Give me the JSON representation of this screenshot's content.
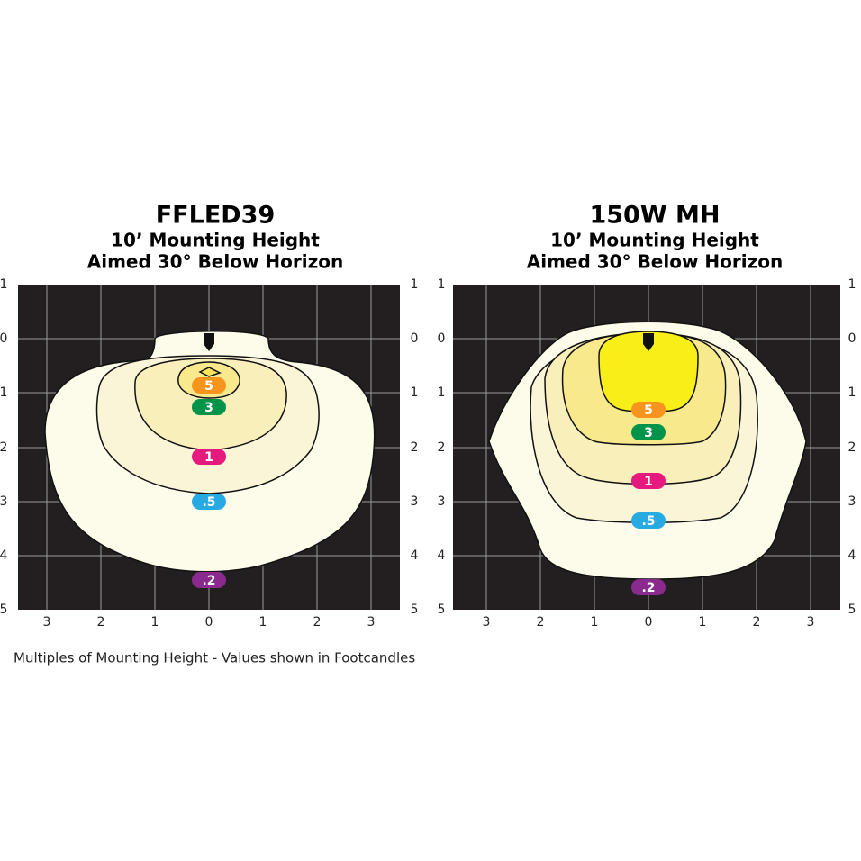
{
  "panels": [
    {
      "title": "FFLED39",
      "subtitle_1": "10’ Mounting Height",
      "subtitle_2": "Aimed 30° Below Horizon",
      "y_labels": [
        "1",
        "0",
        "1",
        "2",
        "3",
        "4",
        "5"
      ],
      "x_labels": [
        "3",
        "2",
        "1",
        "0",
        "1",
        "2",
        "3"
      ],
      "contour_labels": [
        "5",
        "3",
        "1",
        ".5",
        ".2"
      ]
    },
    {
      "title": "150W MH",
      "subtitle_1": "10’ Mounting Height",
      "subtitle_2": "Aimed 30° Below Horizon",
      "y_labels": [
        "1",
        "0",
        "1",
        "2",
        "3",
        "4",
        "5"
      ],
      "x_labels": [
        "3",
        "2",
        "1",
        "0",
        "1",
        "2",
        "3"
      ],
      "contour_labels": [
        "5",
        "3",
        "1",
        ".5",
        ".2"
      ]
    }
  ],
  "footer": "Multiples of Mounting Height - Values shown in Footcandles"
}
